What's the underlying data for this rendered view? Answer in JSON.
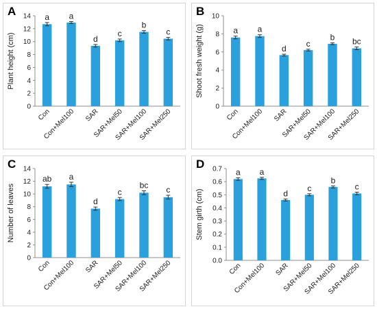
{
  "colors": {
    "bar": "#2aa1dd",
    "axis": "#8c8c8c",
    "text": "#1a1a1a",
    "error": "#333333"
  },
  "chart_data": [
    {
      "panel": "A",
      "type": "bar",
      "categories": [
        "Con",
        "Con+Mel100",
        "SAR",
        "SAR+Mel50",
        "SAR+Mel100",
        "SAR+Mel250"
      ],
      "values": [
        12.7,
        12.95,
        9.35,
        10.2,
        11.5,
        10.45
      ],
      "errors": [
        0.25,
        0.15,
        0.2,
        0.2,
        0.2,
        0.2
      ],
      "letters": [
        "a",
        "a",
        "d",
        "c",
        "b",
        "c"
      ],
      "ylabel": "Plant height (cm)",
      "ylim": [
        0,
        14
      ],
      "yticks": [
        0,
        2,
        4,
        6,
        8,
        10,
        12,
        14
      ],
      "ytick_labels": [
        "0",
        "2",
        "4",
        "6",
        "8",
        "10",
        "12",
        "14"
      ],
      "grid": false
    },
    {
      "panel": "B",
      "type": "bar",
      "categories": [
        "Con",
        "Con+Mel100",
        "SAR",
        "SAR+Mel50",
        "SAR+Mel100",
        "SAR+Mel250"
      ],
      "values": [
        7.6,
        7.75,
        5.65,
        6.2,
        6.9,
        6.4
      ],
      "errors": [
        0.15,
        0.15,
        0.1,
        0.1,
        0.1,
        0.15
      ],
      "letters": [
        "a",
        "a",
        "d",
        "c",
        "b",
        "bc"
      ],
      "ylabel": "Shoot fresh weight (g)",
      "ylim": [
        0,
        10
      ],
      "yticks": [
        0,
        2,
        4,
        6,
        8,
        10
      ],
      "ytick_labels": [
        "0",
        "2",
        "4",
        "6",
        "8",
        "10"
      ],
      "grid": false
    },
    {
      "panel": "C",
      "type": "bar",
      "categories": [
        "Con",
        "Con+Mel100",
        "SAR",
        "SAR+Mel50",
        "SAR+Mel100",
        "SAR+Mel250"
      ],
      "values": [
        11.2,
        11.5,
        7.7,
        9.2,
        10.2,
        9.5
      ],
      "errors": [
        0.3,
        0.35,
        0.25,
        0.25,
        0.3,
        0.3
      ],
      "letters": [
        "ab",
        "a",
        "d",
        "c",
        "bc",
        "c"
      ],
      "ylabel": "Number of leaves",
      "ylim": [
        0,
        14
      ],
      "yticks": [
        0,
        2,
        4,
        6,
        8,
        10,
        12,
        14
      ],
      "ytick_labels": [
        "0",
        "2",
        "4",
        "6",
        "8",
        "10",
        "12",
        "14"
      ],
      "grid": false
    },
    {
      "panel": "D",
      "type": "bar",
      "categories": [
        "Con",
        "Con+Mel100",
        "SAR",
        "SAR+Mel50",
        "SAR+Mel100",
        "SAR+Mel250"
      ],
      "values": [
        0.62,
        0.625,
        0.46,
        0.5,
        0.56,
        0.51
      ],
      "errors": [
        0.01,
        0.008,
        0.008,
        0.008,
        0.008,
        0.01
      ],
      "letters": [
        "a",
        "a",
        "d",
        "c",
        "b",
        "c"
      ],
      "ylabel": "Stem girth (cm)",
      "ylim": [
        0,
        0.7
      ],
      "yticks": [
        0,
        0.1,
        0.2,
        0.3,
        0.4,
        0.5,
        0.6,
        0.7
      ],
      "ytick_labels": [
        "0.0",
        "0.1",
        "0.2",
        "0.3",
        "0.4",
        "0.5",
        "0.6",
        "0.7"
      ],
      "grid": false
    }
  ]
}
